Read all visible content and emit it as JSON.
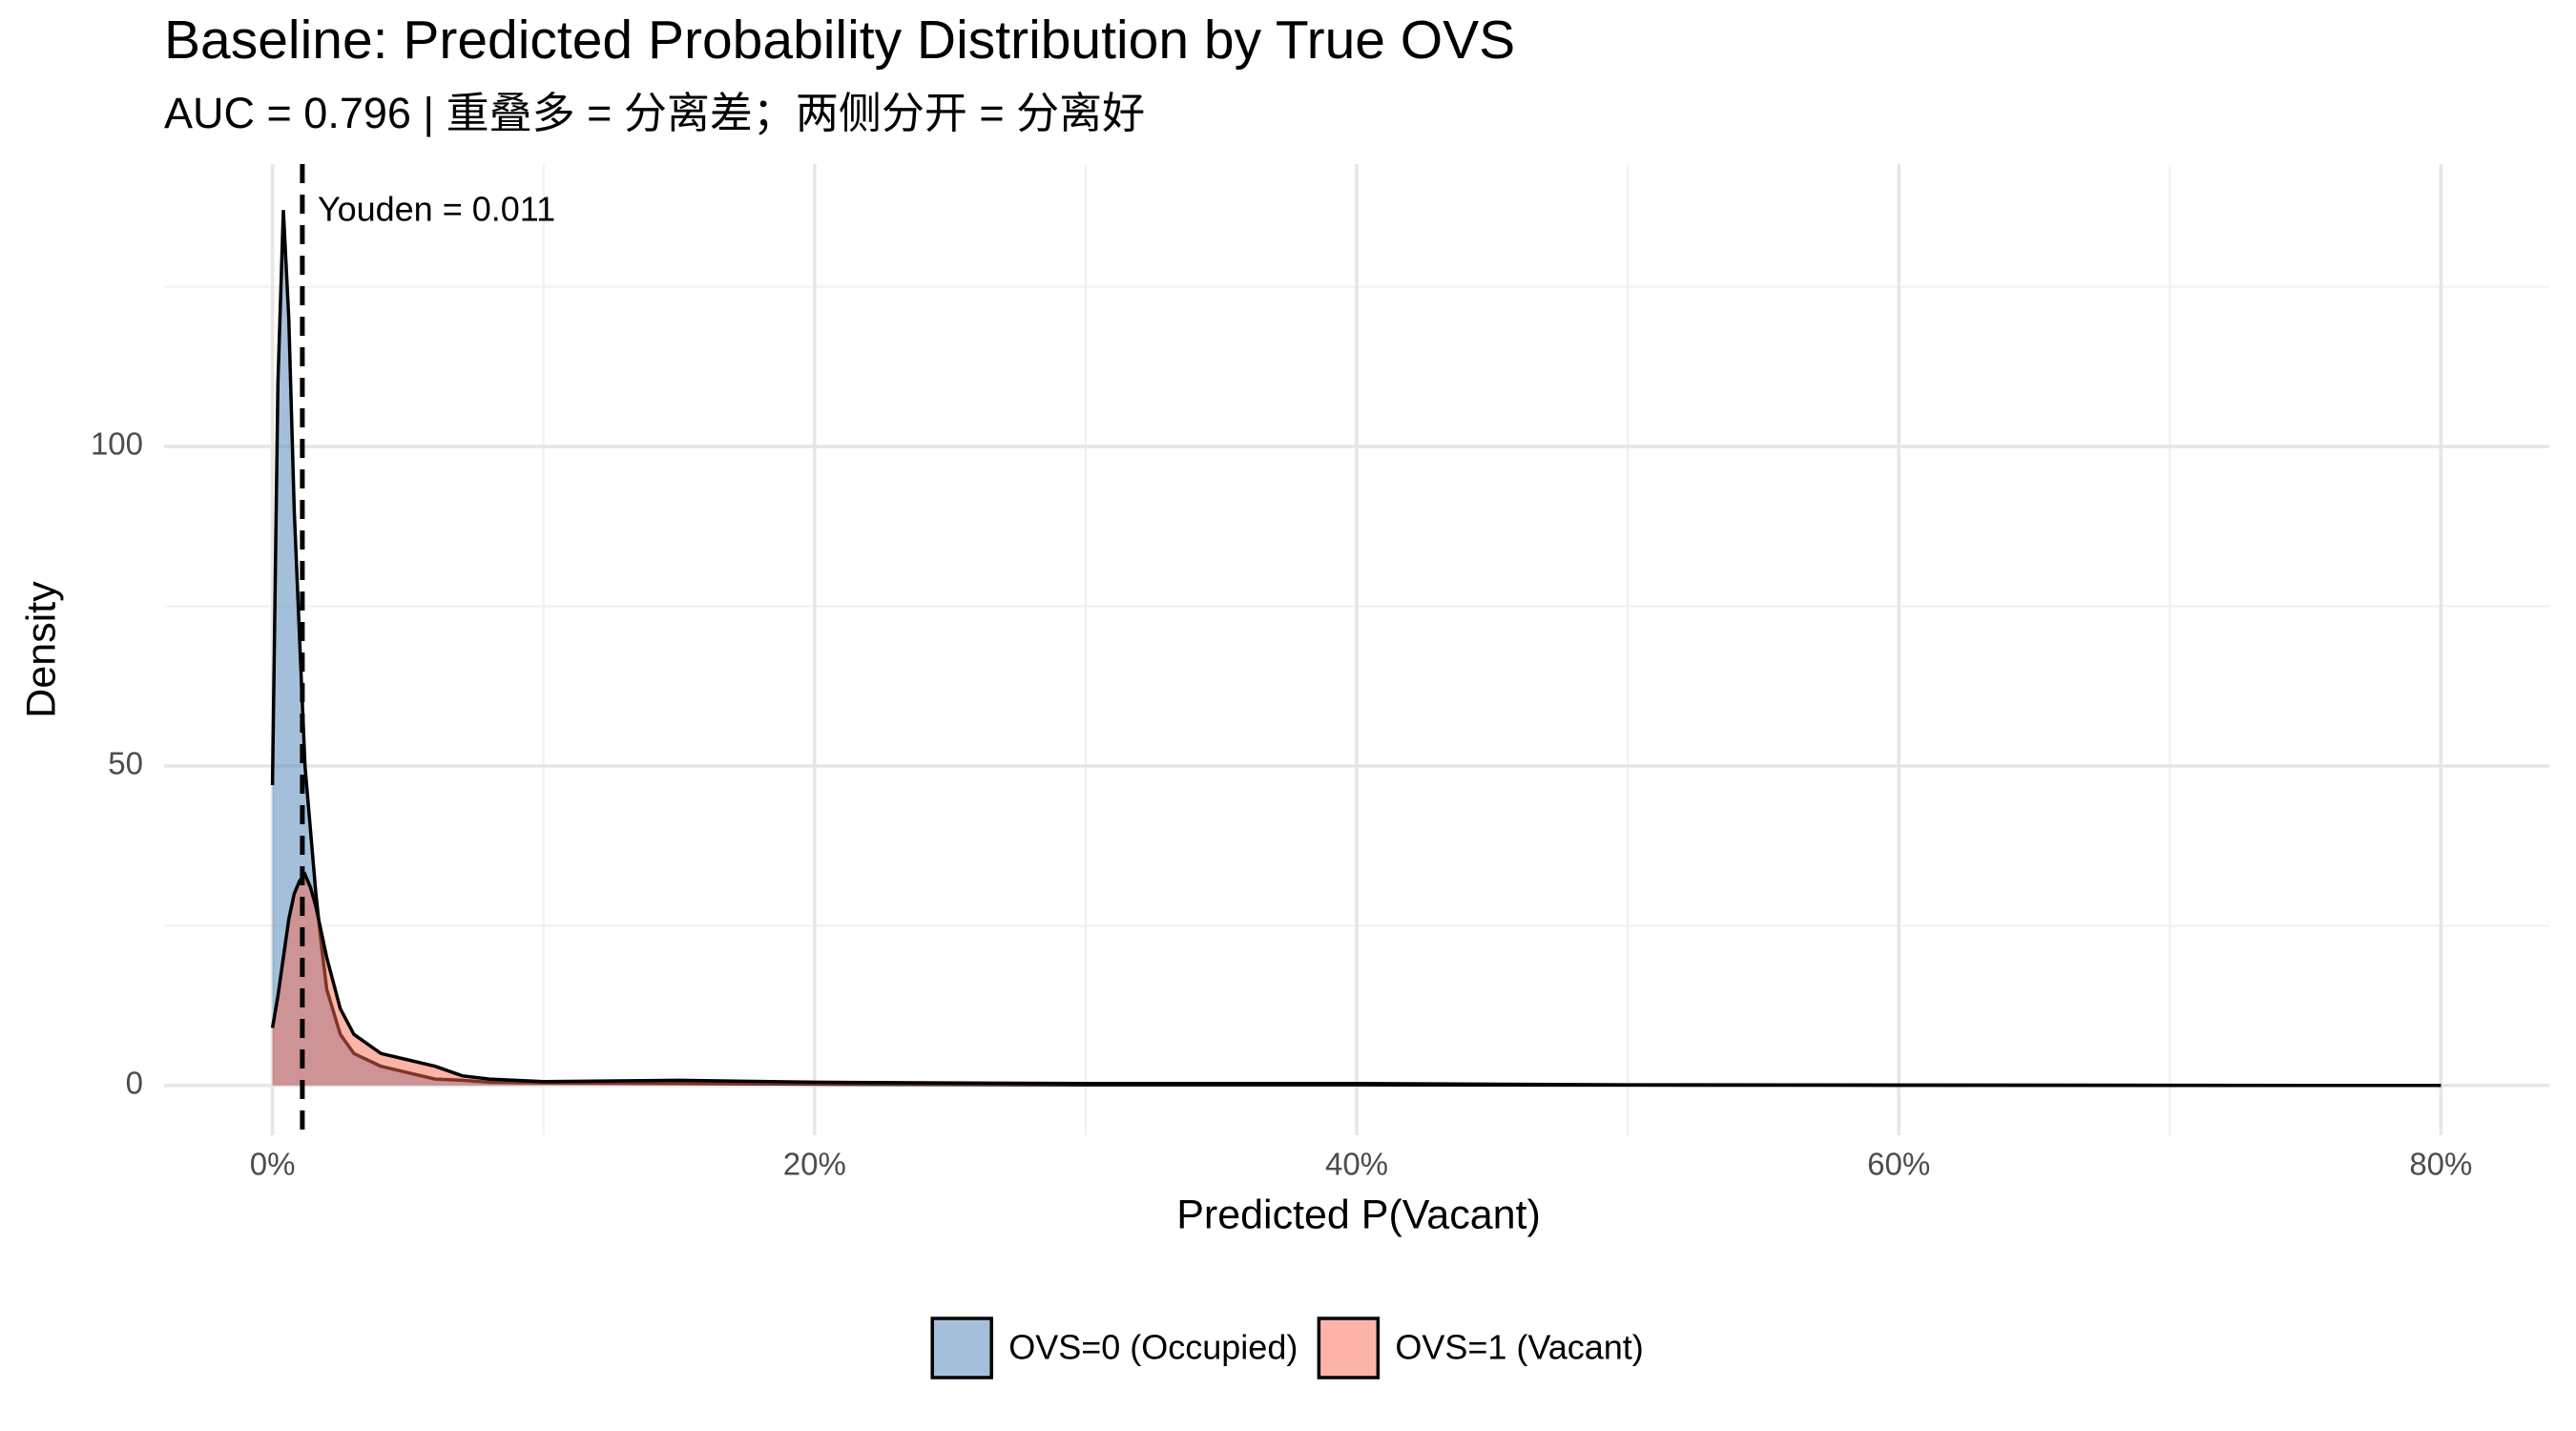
{
  "chart_data": {
    "type": "density",
    "title": "Baseline: Predicted Probability Distribution by True OVS",
    "subtitle": "AUC = 0.796 | 重叠多 = 分离差；两侧分开 = 分离好",
    "x_label": "Predicted P(Vacant)",
    "y_label": "Density",
    "x": [
      0,
      0.002,
      0.004,
      0.006,
      0.008,
      0.01,
      0.012,
      0.014,
      0.016,
      0.018,
      0.02,
      0.025,
      0.03,
      0.04,
      0.05,
      0.06,
      0.07,
      0.08,
      0.1,
      0.15,
      0.2,
      0.3,
      0.4,
      0.5,
      0.6,
      0.8
    ],
    "series": [
      {
        "name": "OVS=0 (Occupied)",
        "color": "#4a7fb5",
        "values": [
          47,
          110,
          137,
          120,
          90,
          70,
          50,
          40,
          30,
          22,
          15,
          8,
          5,
          3,
          2,
          1,
          0.8,
          0.5,
          0.4,
          0.3,
          0.2,
          0.1,
          0.1,
          0.05,
          0.02,
          0
        ]
      },
      {
        "name": "OVS=1 (Vacant)",
        "color": "#f8694f",
        "values": [
          9,
          14,
          20,
          26,
          30,
          32,
          33,
          31,
          28,
          24,
          20,
          12,
          8,
          5,
          4,
          3,
          1.5,
          1,
          0.6,
          0.8,
          0.5,
          0.3,
          0.3,
          0.1,
          0.05,
          0
        ]
      }
    ],
    "fill_opacity": 0.5,
    "vline": {
      "value": 0.011,
      "label": "Youden = 0.011"
    },
    "xlim": [
      -0.04,
      0.84
    ],
    "ylim": [
      -7.8,
      144.2
    ],
    "xticks": [
      {
        "value": 0,
        "label": "0%"
      },
      {
        "value": 0.2,
        "label": "20%"
      },
      {
        "value": 0.4,
        "label": "40%"
      },
      {
        "value": 0.6,
        "label": "60%"
      },
      {
        "value": 0.8,
        "label": "80%"
      }
    ],
    "yticks": [
      0,
      50,
      100
    ],
    "x_minor_ticks": [
      0.1,
      0.3,
      0.5,
      0.7
    ],
    "y_minor_ticks": [
      25,
      75,
      125
    ],
    "grid": true,
    "legend_position": "bottom"
  }
}
